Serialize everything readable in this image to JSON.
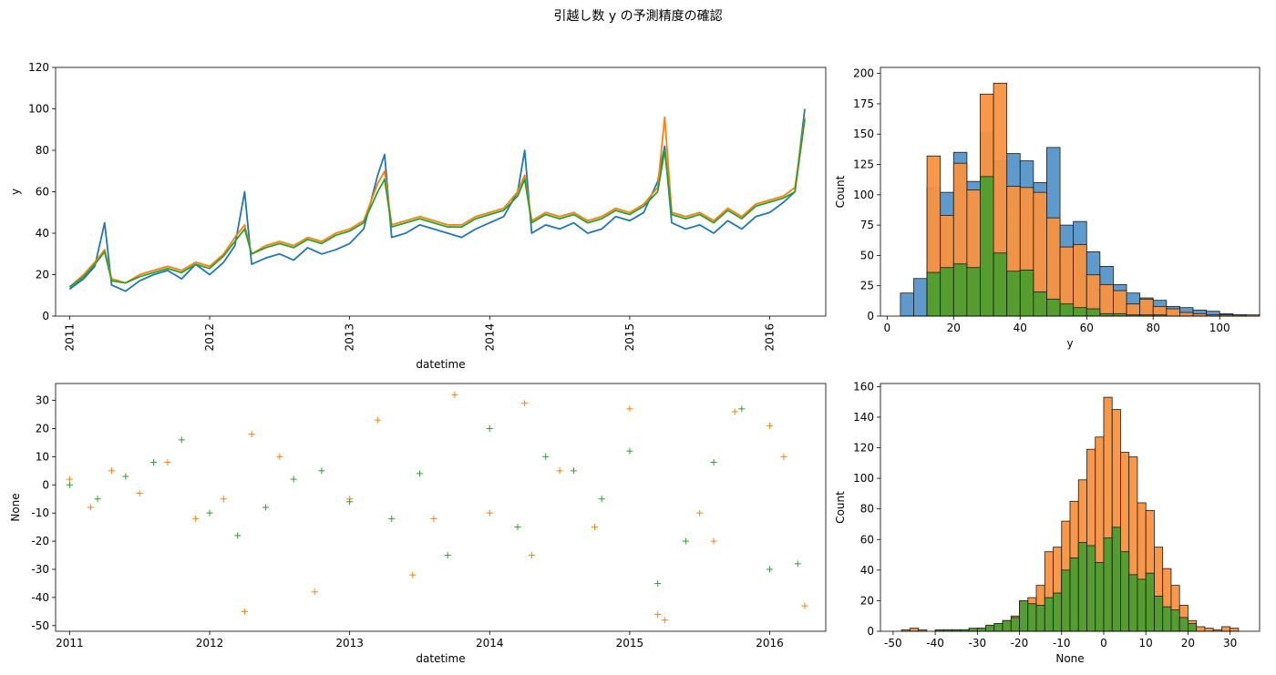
{
  "figure": {
    "suptitle": "引越し数 y の予測精度の確認"
  },
  "colors": {
    "blue": "#1f77b4",
    "orange": "#ff7f0e",
    "green": "#2ca02c",
    "hist_blue": "#5596c9",
    "hist_orange": "#f79240",
    "hist_green": "#4d9d2f"
  },
  "chart_data": [
    {
      "type": "line",
      "name": "timeseries-y",
      "xlabel": "datetime",
      "ylabel": "y",
      "xlim": [
        2010.9,
        2016.4
      ],
      "ylim": [
        0,
        120
      ],
      "xticks": [
        2011,
        2012,
        2013,
        2014,
        2015,
        2016
      ],
      "yticks": [
        0,
        20,
        40,
        60,
        80,
        100,
        120
      ],
      "xtick_rotation": "vertical",
      "grid": false,
      "series": [
        {
          "color": "blue",
          "x": [
            2011.0,
            2011.1,
            2011.18,
            2011.25,
            2011.3,
            2011.4,
            2011.5,
            2011.6,
            2011.7,
            2011.8,
            2011.9,
            2012.0,
            2012.1,
            2012.18,
            2012.25,
            2012.3,
            2012.4,
            2012.5,
            2012.6,
            2012.7,
            2012.8,
            2012.9,
            2013.0,
            2013.1,
            2013.2,
            2013.25,
            2013.3,
            2013.4,
            2013.5,
            2013.6,
            2013.7,
            2013.8,
            2013.9,
            2014.0,
            2014.1,
            2014.2,
            2014.25,
            2014.3,
            2014.4,
            2014.5,
            2014.6,
            2014.7,
            2014.8,
            2014.9,
            2015.0,
            2015.1,
            2015.2,
            2015.25,
            2015.3,
            2015.4,
            2015.5,
            2015.6,
            2015.7,
            2015.8,
            2015.9,
            2016.0,
            2016.1,
            2016.18,
            2016.25
          ],
          "y": [
            13,
            18,
            24,
            45,
            15,
            12,
            17,
            20,
            22,
            18,
            25,
            20,
            26,
            34,
            60,
            25,
            28,
            30,
            27,
            33,
            30,
            32,
            35,
            42,
            68,
            78,
            38,
            40,
            44,
            42,
            40,
            38,
            42,
            45,
            48,
            60,
            80,
            40,
            44,
            42,
            45,
            40,
            42,
            48,
            46,
            50,
            65,
            82,
            45,
            42,
            44,
            40,
            46,
            42,
            48,
            50,
            55,
            60,
            100
          ]
        },
        {
          "color": "orange",
          "x": [
            2011.0,
            2011.1,
            2011.18,
            2011.25,
            2011.3,
            2011.4,
            2011.5,
            2011.6,
            2011.7,
            2011.8,
            2011.9,
            2012.0,
            2012.1,
            2012.18,
            2012.25,
            2012.3,
            2012.4,
            2012.5,
            2012.6,
            2012.7,
            2012.8,
            2012.9,
            2013.0,
            2013.1,
            2013.2,
            2013.25,
            2013.3,
            2013.4,
            2013.5,
            2013.6,
            2013.7,
            2013.8,
            2013.9,
            2014.0,
            2014.1,
            2014.2,
            2014.25,
            2014.3,
            2014.4,
            2014.5,
            2014.6,
            2014.7,
            2014.8,
            2014.9,
            2015.0,
            2015.1,
            2015.2,
            2015.25,
            2015.3,
            2015.4,
            2015.5,
            2015.6,
            2015.7,
            2015.8,
            2015.9,
            2016.0,
            2016.1,
            2016.18,
            2016.25
          ],
          "y": [
            14,
            20,
            26,
            32,
            18,
            16,
            20,
            22,
            24,
            22,
            26,
            24,
            30,
            38,
            44,
            30,
            34,
            36,
            34,
            38,
            36,
            40,
            42,
            46,
            64,
            70,
            44,
            46,
            48,
            46,
            44,
            44,
            48,
            50,
            52,
            60,
            68,
            46,
            50,
            48,
            50,
            46,
            48,
            52,
            50,
            54,
            62,
            96,
            50,
            48,
            50,
            46,
            52,
            48,
            54,
            56,
            58,
            62,
            96
          ]
        },
        {
          "color": "green",
          "x": [
            2011.0,
            2011.1,
            2011.18,
            2011.25,
            2011.3,
            2011.4,
            2011.5,
            2011.6,
            2011.7,
            2011.8,
            2011.9,
            2012.0,
            2012.1,
            2012.18,
            2012.25,
            2012.3,
            2012.4,
            2012.5,
            2012.6,
            2012.7,
            2012.8,
            2012.9,
            2013.0,
            2013.1,
            2013.2,
            2013.25,
            2013.3,
            2013.4,
            2013.5,
            2013.6,
            2013.7,
            2013.8,
            2013.9,
            2014.0,
            2014.1,
            2014.2,
            2014.25,
            2014.3,
            2014.4,
            2014.5,
            2014.6,
            2014.7,
            2014.8,
            2014.9,
            2015.0,
            2015.1,
            2015.2,
            2015.25,
            2015.3,
            2015.4,
            2015.5,
            2015.6,
            2015.7,
            2015.8,
            2015.9,
            2016.0,
            2016.1,
            2016.18,
            2016.25
          ],
          "y": [
            14,
            19,
            25,
            31,
            17,
            16,
            19,
            21,
            23,
            21,
            25,
            23,
            29,
            36,
            42,
            30,
            33,
            35,
            33,
            37,
            35,
            39,
            41,
            45,
            60,
            66,
            43,
            45,
            47,
            45,
            43,
            43,
            47,
            49,
            51,
            58,
            66,
            45,
            49,
            47,
            49,
            45,
            47,
            51,
            49,
            53,
            60,
            80,
            49,
            47,
            49,
            45,
            51,
            47,
            53,
            55,
            57,
            60,
            95
          ]
        }
      ]
    },
    {
      "type": "histogram",
      "name": "hist-y",
      "xlabel": "y",
      "ylabel": "Count",
      "xlim": [
        -2,
        112
      ],
      "ylim": [
        0,
        205
      ],
      "xticks": [
        0,
        20,
        40,
        60,
        80,
        100
      ],
      "yticks": [
        0,
        25,
        50,
        75,
        100,
        125,
        150,
        175,
        200
      ],
      "series": [
        {
          "color": "hist_blue",
          "bin_edges": [
            4,
            8,
            12,
            16,
            20,
            24,
            28,
            32,
            36,
            40,
            44,
            48,
            52,
            56,
            60,
            64,
            68,
            72,
            76,
            80,
            84,
            88,
            92,
            96,
            100,
            104,
            108
          ],
          "counts": [
            19,
            31,
            106,
            102,
            135,
            111,
            151,
            128,
            134,
            128,
            110,
            139,
            75,
            78,
            53,
            41,
            26,
            19,
            15,
            13,
            8,
            7,
            5,
            4,
            2,
            1
          ]
        },
        {
          "color": "hist_orange",
          "bin_edges": [
            12,
            16,
            20,
            24,
            28,
            32,
            36,
            40,
            44,
            48,
            52,
            56,
            60,
            64,
            68,
            72,
            76,
            80,
            84,
            88,
            92,
            96,
            100,
            104,
            108,
            112
          ],
          "counts": [
            132,
            83,
            126,
            104,
            183,
            192,
            107,
            106,
            102,
            81,
            57,
            59,
            34,
            26,
            21,
            10,
            14,
            8,
            6,
            3,
            2,
            1,
            1,
            0,
            1
          ]
        },
        {
          "color": "hist_green",
          "bin_edges": [
            12,
            16,
            20,
            24,
            28,
            32,
            36,
            40,
            44,
            48,
            52,
            56,
            60,
            64,
            68,
            72,
            76,
            80,
            84,
            88,
            92,
            96,
            100,
            104,
            108
          ],
          "counts": [
            36,
            40,
            43,
            40,
            115,
            52,
            37,
            38,
            20,
            14,
            10,
            7,
            6,
            2,
            2,
            1,
            1,
            1,
            0,
            0,
            0,
            0,
            0,
            1
          ]
        }
      ]
    },
    {
      "type": "scatter",
      "name": "residuals-over-time",
      "xlabel": "datetime",
      "ylabel": "None",
      "xlim": [
        2010.9,
        2016.4
      ],
      "ylim": [
        -52,
        36
      ],
      "xticks": [
        2011,
        2012,
        2013,
        2014,
        2015,
        2016
      ],
      "yticks": [
        -50,
        -40,
        -30,
        -20,
        -10,
        0,
        10,
        20,
        30
      ],
      "marker": "+",
      "series": [
        {
          "color": "orange",
          "x": [
            2011.0,
            2011.15,
            2011.3,
            2011.5,
            2011.7,
            2011.9,
            2012.1,
            2012.25,
            2012.5,
            2012.75,
            2013.0,
            2013.2,
            2013.45,
            2013.75,
            2014.0,
            2014.25,
            2014.5,
            2014.75,
            2015.0,
            2015.2,
            2015.25,
            2015.5,
            2015.75,
            2016.0,
            2016.25,
            2012.3,
            2013.6,
            2014.3,
            2015.6,
            2016.1
          ],
          "y": [
            2,
            -8,
            5,
            -3,
            8,
            -12,
            -5,
            -45,
            10,
            -38,
            -5,
            23,
            -32,
            32,
            -10,
            29,
            5,
            -15,
            27,
            -46,
            -48,
            -10,
            26,
            21,
            -43,
            18,
            -12,
            -25,
            -20,
            10
          ]
        },
        {
          "color": "green",
          "x": [
            2011.0,
            2011.2,
            2011.4,
            2011.6,
            2011.8,
            2012.0,
            2012.2,
            2012.4,
            2012.6,
            2012.8,
            2013.0,
            2013.3,
            2013.5,
            2013.7,
            2014.0,
            2014.2,
            2014.4,
            2014.6,
            2014.8,
            2015.0,
            2015.2,
            2015.4,
            2015.6,
            2015.8,
            2016.0,
            2016.2
          ],
          "y": [
            0,
            -5,
            3,
            8,
            16,
            -10,
            -18,
            -8,
            2,
            5,
            -6,
            -12,
            4,
            -25,
            20,
            -15,
            10,
            5,
            -5,
            12,
            -35,
            -20,
            8,
            27,
            -30,
            -28
          ]
        }
      ]
    },
    {
      "type": "histogram",
      "name": "hist-residuals",
      "xlabel": "None",
      "ylabel": "Count",
      "xlim": [
        -53,
        37
      ],
      "ylim": [
        0,
        162
      ],
      "xticks": [
        -50,
        -40,
        -30,
        -20,
        -10,
        0,
        10,
        20,
        30
      ],
      "yticks": [
        0,
        20,
        40,
        60,
        80,
        100,
        120,
        140,
        160
      ],
      "series": [
        {
          "color": "hist_orange",
          "bin_edges": [
            -48,
            -46,
            -44,
            -42,
            -40,
            -38,
            -36,
            -34,
            -32,
            -30,
            -28,
            -26,
            -24,
            -22,
            -20,
            -18,
            -16,
            -14,
            -12,
            -10,
            -8,
            -6,
            -4,
            -2,
            0,
            2,
            4,
            6,
            8,
            10,
            12,
            14,
            16,
            18,
            20,
            22,
            24,
            26,
            28,
            30,
            32
          ],
          "counts": [
            1,
            2,
            1,
            0,
            0,
            1,
            1,
            1,
            1,
            2,
            3,
            5,
            7,
            10,
            20,
            22,
            30,
            52,
            55,
            72,
            85,
            99,
            119,
            127,
            153,
            145,
            117,
            114,
            84,
            79,
            55,
            41,
            30,
            17,
            7,
            3,
            2,
            1,
            3,
            2
          ]
        },
        {
          "color": "hist_green",
          "bin_edges": [
            -40,
            -38,
            -36,
            -34,
            -32,
            -30,
            -28,
            -26,
            -24,
            -22,
            -20,
            -18,
            -16,
            -14,
            -12,
            -10,
            -8,
            -6,
            -4,
            -2,
            0,
            2,
            4,
            6,
            8,
            10,
            12,
            14,
            16,
            18,
            20,
            22
          ],
          "counts": [
            1,
            1,
            1,
            1,
            2,
            2,
            4,
            5,
            7,
            9,
            20,
            18,
            17,
            22,
            25,
            40,
            48,
            58,
            56,
            45,
            61,
            68,
            52,
            37,
            34,
            38,
            23,
            16,
            14,
            9,
            5,
            3
          ]
        }
      ]
    }
  ]
}
